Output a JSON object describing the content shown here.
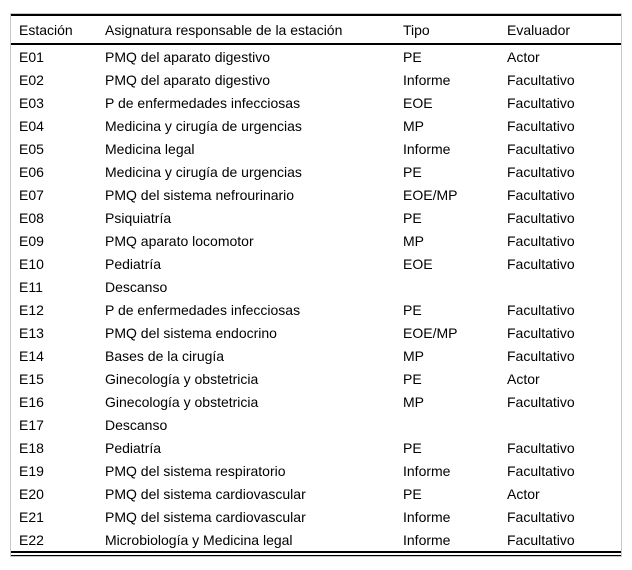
{
  "chart_data": {
    "type": "table",
    "columns": [
      "Estación",
      "Asignatura responsable de la estación",
      "Tipo",
      "Evaluador"
    ],
    "rows": [
      [
        "E01",
        "PMQ del aparato digestivo",
        "PE",
        "Actor"
      ],
      [
        "E02",
        "PMQ del aparato digestivo",
        "Informe",
        "Facultativo"
      ],
      [
        "E03",
        "P de enfermedades infecciosas",
        "EOE",
        "Facultativo"
      ],
      [
        "E04",
        "Medicina y cirugía de urgencias",
        "MP",
        "Facultativo"
      ],
      [
        "E05",
        "Medicina legal",
        "Informe",
        "Facultativo"
      ],
      [
        "E06",
        "Medicina y cirugía de urgencias",
        "PE",
        "Facultativo"
      ],
      [
        "E07",
        "PMQ del sistema nefrourinario",
        "EOE/MP",
        "Facultativo"
      ],
      [
        "E08",
        "Psiquiatría",
        "PE",
        "Facultativo"
      ],
      [
        "E09",
        "PMQ aparato locomotor",
        "MP",
        "Facultativo"
      ],
      [
        "E10",
        "Pediatría",
        "EOE",
        "Facultativo"
      ],
      [
        "E11",
        "Descanso",
        "",
        ""
      ],
      [
        "E12",
        "P de enfermedades infecciosas",
        "PE",
        "Facultativo"
      ],
      [
        "E13",
        "PMQ del sistema endocrino",
        "EOE/MP",
        "Facultativo"
      ],
      [
        "E14",
        "Bases de la cirugía",
        "MP",
        "Facultativo"
      ],
      [
        "E15",
        "Ginecología y obstetricia",
        "PE",
        "Actor"
      ],
      [
        "E16",
        "Ginecología y obstetricia",
        "MP",
        "Facultativo"
      ],
      [
        "E17",
        "Descanso",
        "",
        ""
      ],
      [
        "E18",
        "Pediatría",
        "PE",
        "Facultativo"
      ],
      [
        "E19",
        "PMQ del sistema respiratorio",
        "Informe",
        "Facultativo"
      ],
      [
        "E20",
        "PMQ del sistema cardiovascular",
        "PE",
        "Actor"
      ],
      [
        "E21",
        "PMQ del sistema cardiovascular",
        "Informe",
        "Facultativo"
      ],
      [
        "E22",
        "Microbiología y Medicina legal",
        "Informe",
        "Facultativo"
      ]
    ]
  },
  "colors": {
    "text": "#000000",
    "rule": "#000000",
    "outer_border": "#c9c9c9",
    "background": "#ffffff"
  }
}
